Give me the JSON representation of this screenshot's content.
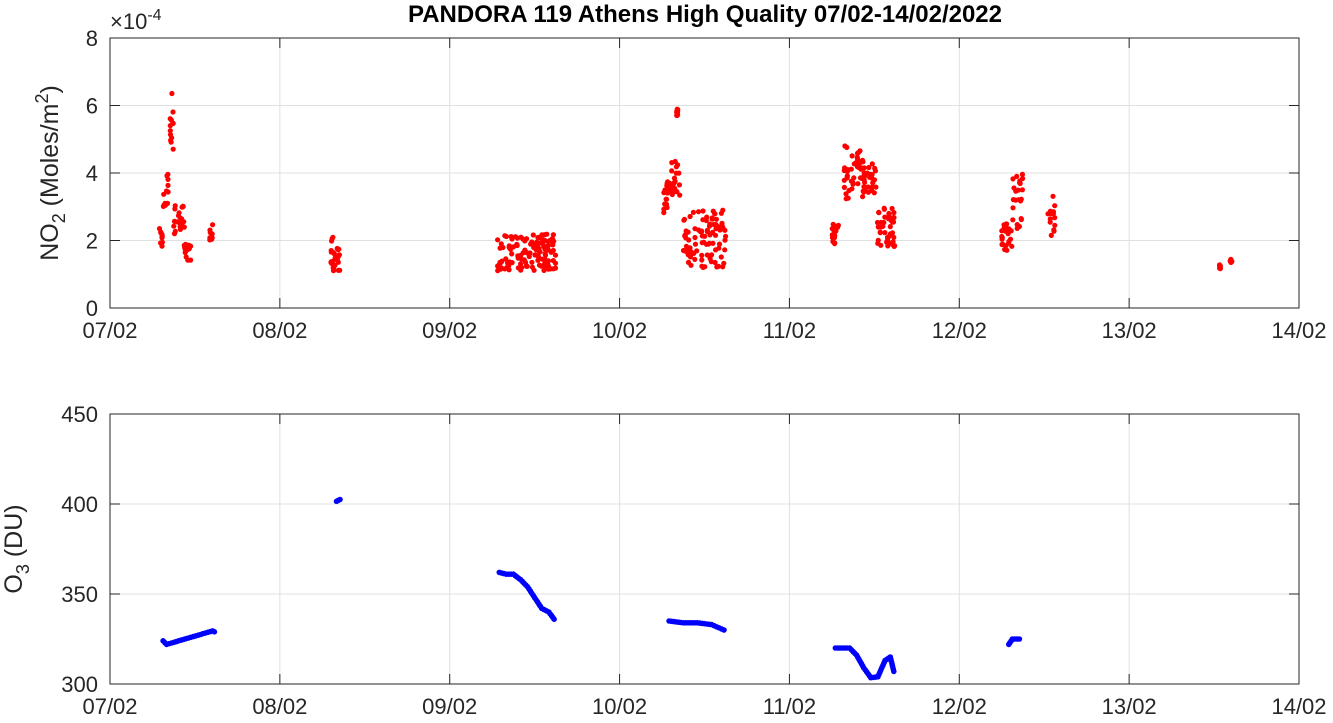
{
  "chart_data": [
    {
      "type": "scatter",
      "title": "PANDORA 119 Athens High Quality 07/02-14/02/2022",
      "ylabel_main": "NO",
      "ylabel_sub": "2",
      "ylabel_rest": " (Moles/m",
      "ylabel_sup": "2",
      "ylabel_close": ")",
      "exponent_prefix": "×10",
      "exponent_power": "-4",
      "ylim": [
        0,
        0.0008
      ],
      "yticks": [
        0,
        2,
        4,
        6,
        8
      ],
      "xlim": [
        "07/02",
        "14/02"
      ],
      "xticks": [
        "07/02",
        "08/02",
        "09/02",
        "10/02",
        "11/02",
        "12/02",
        "13/02",
        "14/02"
      ],
      "grid": true,
      "color": "#ff0000",
      "clusters": [
        {
          "start": "07/02 07:00",
          "end": "07/02 07:30",
          "low": 1.8,
          "high": 2.4
        },
        {
          "start": "07/02 07:30",
          "end": "07/02 08:15",
          "low": 2.6,
          "high": 4.1
        },
        {
          "start": "07/02 08:15",
          "end": "07/02 09:00",
          "low": 4.6,
          "high": 6.5
        },
        {
          "start": "07/02 09:00",
          "end": "07/02 10:30",
          "low": 2.2,
          "high": 3.1
        },
        {
          "start": "07/02 10:30",
          "end": "07/02 11:30",
          "low": 1.4,
          "high": 1.9
        },
        {
          "start": "07/02 14:00",
          "end": "07/02 14:30",
          "low": 1.8,
          "high": 2.5
        },
        {
          "start": "08/02 07:00",
          "end": "08/02 07:30",
          "low": 1.2,
          "high": 2.1
        },
        {
          "start": "08/02 07:30",
          "end": "08/02 08:30",
          "low": 1.1,
          "high": 1.8
        },
        {
          "start": "09/02 06:45",
          "end": "09/02 15:00",
          "low": 1.1,
          "high": 2.2
        },
        {
          "start": "10/02 06:00",
          "end": "10/02 07:15",
          "low": 2.8,
          "high": 3.9
        },
        {
          "start": "10/02 07:15",
          "end": "10/02 08:30",
          "low": 3.3,
          "high": 4.5
        },
        {
          "start": "10/02 08:00",
          "end": "10/02 08:15",
          "low": 5.7,
          "high": 5.9
        },
        {
          "start": "10/02 09:00",
          "end": "10/02 15:00",
          "low": 1.2,
          "high": 2.9
        },
        {
          "start": "11/02 06:00",
          "end": "11/02 07:00",
          "low": 1.9,
          "high": 2.5
        },
        {
          "start": "11/02 07:45",
          "end": "11/02 10:30",
          "low": 3.2,
          "high": 4.9
        },
        {
          "start": "11/02 10:30",
          "end": "11/02 12:15",
          "low": 3.4,
          "high": 4.3
        },
        {
          "start": "11/02 12:15",
          "end": "11/02 15:00",
          "low": 1.8,
          "high": 3.0
        },
        {
          "start": "12/02 06:00",
          "end": "12/02 07:30",
          "low": 1.7,
          "high": 2.5
        },
        {
          "start": "12/02 07:30",
          "end": "12/02 09:00",
          "low": 2.3,
          "high": 4.0
        },
        {
          "start": "12/02 12:30",
          "end": "12/02 13:30",
          "low": 2.1,
          "high": 3.5
        },
        {
          "start": "13/02 12:45",
          "end": "13/02 13:00",
          "low": 1.1,
          "high": 1.3
        },
        {
          "start": "13/02 14:15",
          "end": "13/02 14:30",
          "low": 1.35,
          "high": 1.45
        }
      ]
    },
    {
      "type": "scatter",
      "ylabel_main": "O",
      "ylabel_sub": "3",
      "ylabel_rest": " (DU)",
      "ylim": [
        300,
        450
      ],
      "yticks": [
        300,
        350,
        400,
        450
      ],
      "xlim": [
        "07/02",
        "14/02"
      ],
      "xticks": [
        "07/02",
        "08/02",
        "09/02",
        "10/02",
        "11/02",
        "12/02",
        "13/02",
        "14/02"
      ],
      "grid": true,
      "color": "#0000ff",
      "points": [
        {
          "x": "07/02 07:30",
          "y": 324
        },
        {
          "x": "07/02 08:00",
          "y": 322
        },
        {
          "x": "07/02 14:30",
          "y": 329.5
        },
        {
          "x": "07/02 14:45",
          "y": 329
        },
        {
          "x": "08/02 08:00",
          "y": 401.5
        },
        {
          "x": "08/02 08:30",
          "y": 402.5
        },
        {
          "x": "09/02 07:00",
          "y": 362
        },
        {
          "x": "09/02 08:00",
          "y": 361
        },
        {
          "x": "09/02 09:00",
          "y": 361
        },
        {
          "x": "09/02 10:00",
          "y": 358
        },
        {
          "x": "09/02 11:00",
          "y": 354
        },
        {
          "x": "09/02 12:00",
          "y": 348
        },
        {
          "x": "09/02 13:00",
          "y": 342
        },
        {
          "x": "09/02 14:00",
          "y": 340
        },
        {
          "x": "09/02 14:45",
          "y": 336
        },
        {
          "x": "10/02 07:00",
          "y": 335
        },
        {
          "x": "10/02 09:00",
          "y": 334
        },
        {
          "x": "10/02 11:00",
          "y": 334
        },
        {
          "x": "10/02 13:00",
          "y": 333
        },
        {
          "x": "10/02 14:45",
          "y": 330
        },
        {
          "x": "11/02 06:30",
          "y": 320
        },
        {
          "x": "11/02 08:30",
          "y": 320
        },
        {
          "x": "11/02 09:30",
          "y": 316
        },
        {
          "x": "11/02 10:30",
          "y": 309
        },
        {
          "x": "11/02 11:30",
          "y": 303.5
        },
        {
          "x": "11/02 12:30",
          "y": 304
        },
        {
          "x": "11/02 13:30",
          "y": 313
        },
        {
          "x": "11/02 14:15",
          "y": 315
        },
        {
          "x": "11/02 14:45",
          "y": 307
        },
        {
          "x": "12/02 07:00",
          "y": 322
        },
        {
          "x": "12/02 07:30",
          "y": 325
        },
        {
          "x": "12/02 08:30",
          "y": 325
        }
      ]
    }
  ]
}
